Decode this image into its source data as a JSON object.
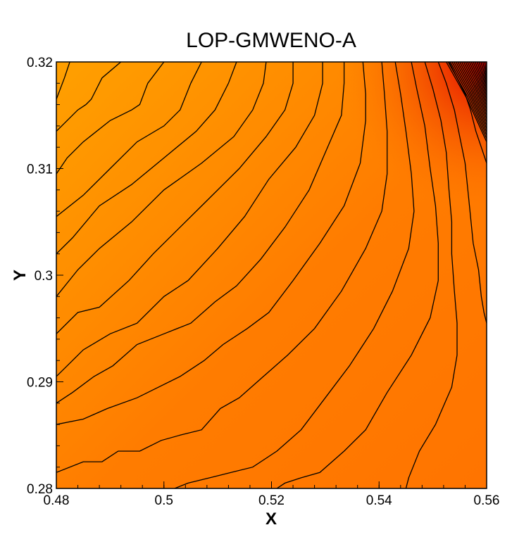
{
  "chart_data": {
    "type": "contour",
    "title": "LOP-GMWENO-A",
    "xlabel": "X",
    "ylabel": "Y",
    "xlim": [
      0.48,
      0.56
    ],
    "ylim": [
      0.28,
      0.32
    ],
    "x_ticks": [
      "0.48",
      "0.5",
      "0.52",
      "0.54",
      "0.56"
    ],
    "y_ticks": [
      "0.28",
      "0.29",
      "0.3",
      "0.31",
      "0.32"
    ],
    "x_tick_values": [
      0.48,
      0.5,
      0.52,
      0.54,
      0.56
    ],
    "y_tick_values": [
      0.28,
      0.29,
      0.3,
      0.31,
      0.32
    ],
    "colormap": [
      "#ffa000",
      "#ff7c00",
      "#ff7400",
      "#e00000"
    ],
    "grid": false,
    "legend": "none",
    "contours": [
      [
        [
          0.4825,
          0.32
        ],
        [
          0.4815,
          0.3185
        ],
        [
          0.48,
          0.3165
        ]
      ],
      [
        [
          0.492,
          0.32
        ],
        [
          0.4885,
          0.3185
        ],
        [
          0.4865,
          0.3165
        ],
        [
          0.4855,
          0.316
        ],
        [
          0.484,
          0.3155
        ],
        [
          0.482,
          0.3145
        ],
        [
          0.48,
          0.3135
        ]
      ],
      [
        [
          0.5,
          0.32
        ],
        [
          0.497,
          0.318
        ],
        [
          0.4955,
          0.316
        ],
        [
          0.494,
          0.3155
        ],
        [
          0.49,
          0.3145
        ],
        [
          0.485,
          0.3125
        ],
        [
          0.482,
          0.311
        ],
        [
          0.48,
          0.3095
        ]
      ],
      [
        [
          0.507,
          0.32
        ],
        [
          0.505,
          0.318
        ],
        [
          0.503,
          0.3155
        ],
        [
          0.5,
          0.314
        ],
        [
          0.495,
          0.3125
        ],
        [
          0.49,
          0.31
        ],
        [
          0.485,
          0.3075
        ],
        [
          0.48,
          0.3055
        ]
      ],
      [
        [
          0.5135,
          0.32
        ],
        [
          0.512,
          0.318
        ],
        [
          0.5095,
          0.3155
        ],
        [
          0.506,
          0.3135
        ],
        [
          0.5,
          0.311
        ],
        [
          0.494,
          0.3085
        ],
        [
          0.488,
          0.3065
        ],
        [
          0.483,
          0.3035
        ],
        [
          0.48,
          0.302
        ]
      ],
      [
        [
          0.519,
          0.32
        ],
        [
          0.5185,
          0.318
        ],
        [
          0.5165,
          0.3155
        ],
        [
          0.513,
          0.313
        ],
        [
          0.507,
          0.3105
        ],
        [
          0.5,
          0.308
        ],
        [
          0.494,
          0.305
        ],
        [
          0.488,
          0.3025
        ],
        [
          0.484,
          0.3005
        ],
        [
          0.48,
          0.298
        ]
      ],
      [
        [
          0.524,
          0.32
        ],
        [
          0.524,
          0.318
        ],
        [
          0.5225,
          0.3155
        ],
        [
          0.519,
          0.313
        ],
        [
          0.514,
          0.31
        ],
        [
          0.508,
          0.307
        ],
        [
          0.503,
          0.3045
        ],
        [
          0.498,
          0.302
        ],
        [
          0.4935,
          0.2995
        ],
        [
          0.488,
          0.297
        ],
        [
          0.484,
          0.2965
        ],
        [
          0.48,
          0.2945
        ]
      ],
      [
        [
          0.5295,
          0.32
        ],
        [
          0.5295,
          0.318
        ],
        [
          0.528,
          0.315
        ],
        [
          0.5245,
          0.312
        ],
        [
          0.5195,
          0.309
        ],
        [
          0.515,
          0.3055
        ],
        [
          0.51,
          0.3025
        ],
        [
          0.5045,
          0.2995
        ],
        [
          0.5,
          0.298
        ],
        [
          0.495,
          0.2955
        ],
        [
          0.49,
          0.2945
        ],
        [
          0.485,
          0.293
        ],
        [
          0.482,
          0.2915
        ],
        [
          0.48,
          0.2905
        ]
      ],
      [
        [
          0.5335,
          0.32
        ],
        [
          0.5335,
          0.318
        ],
        [
          0.533,
          0.315
        ],
        [
          0.53,
          0.3115
        ],
        [
          0.527,
          0.308
        ],
        [
          0.5225,
          0.3045
        ],
        [
          0.518,
          0.3015
        ],
        [
          0.5135,
          0.299
        ],
        [
          0.5095,
          0.2975
        ],
        [
          0.505,
          0.2955
        ],
        [
          0.5,
          0.2945
        ],
        [
          0.495,
          0.2935
        ],
        [
          0.4905,
          0.2915
        ],
        [
          0.487,
          0.2905
        ],
        [
          0.483,
          0.289
        ],
        [
          0.48,
          0.288
        ]
      ],
      [
        [
          0.537,
          0.32
        ],
        [
          0.5375,
          0.317
        ],
        [
          0.5375,
          0.3145
        ],
        [
          0.5365,
          0.3105
        ],
        [
          0.5335,
          0.3065
        ],
        [
          0.529,
          0.303
        ],
        [
          0.524,
          0.2995
        ],
        [
          0.5195,
          0.2965
        ],
        [
          0.5155,
          0.295
        ],
        [
          0.511,
          0.2935
        ],
        [
          0.5075,
          0.292
        ],
        [
          0.503,
          0.2905
        ],
        [
          0.499,
          0.2895
        ],
        [
          0.495,
          0.2885
        ],
        [
          0.4895,
          0.2875
        ],
        [
          0.485,
          0.2865
        ],
        [
          0.48,
          0.286
        ]
      ],
      [
        [
          0.5405,
          0.32
        ],
        [
          0.541,
          0.317
        ],
        [
          0.5415,
          0.3135
        ],
        [
          0.5415,
          0.3095
        ],
        [
          0.5405,
          0.306
        ],
        [
          0.5375,
          0.3025
        ],
        [
          0.533,
          0.2985
        ],
        [
          0.528,
          0.295
        ],
        [
          0.523,
          0.2925
        ],
        [
          0.5185,
          0.2905
        ],
        [
          0.514,
          0.2885
        ],
        [
          0.5105,
          0.2875
        ],
        [
          0.507,
          0.2855
        ],
        [
          0.503,
          0.285
        ],
        [
          0.4995,
          0.2845
        ],
        [
          0.4955,
          0.2835
        ],
        [
          0.4915,
          0.2835
        ],
        [
          0.4885,
          0.2825
        ],
        [
          0.485,
          0.2825
        ],
        [
          0.48,
          0.2815
        ]
      ],
      [
        [
          0.543,
          0.32
        ],
        [
          0.544,
          0.317
        ],
        [
          0.545,
          0.3135
        ],
        [
          0.546,
          0.3095
        ],
        [
          0.5465,
          0.306
        ],
        [
          0.5455,
          0.3025
        ],
        [
          0.5425,
          0.2985
        ],
        [
          0.539,
          0.295
        ],
        [
          0.5345,
          0.2915
        ],
        [
          0.53,
          0.2885
        ],
        [
          0.5255,
          0.2855
        ],
        [
          0.521,
          0.2835
        ],
        [
          0.5165,
          0.282
        ],
        [
          0.5125,
          0.2815
        ],
        [
          0.5085,
          0.281
        ],
        [
          0.5045,
          0.2805
        ],
        [
          0.502,
          0.28
        ]
      ],
      [
        [
          0.546,
          0.32
        ],
        [
          0.547,
          0.3175
        ],
        [
          0.5485,
          0.314
        ],
        [
          0.5495,
          0.31
        ],
        [
          0.5505,
          0.3065
        ],
        [
          0.551,
          0.303
        ],
        [
          0.551,
          0.2995
        ],
        [
          0.5495,
          0.296
        ],
        [
          0.546,
          0.2925
        ],
        [
          0.5415,
          0.289
        ],
        [
          0.5375,
          0.2855
        ],
        [
          0.5335,
          0.2835
        ],
        [
          0.529,
          0.2815
        ],
        [
          0.5255,
          0.281
        ],
        [
          0.5225,
          0.2805
        ],
        [
          0.521,
          0.28
        ]
      ],
      [
        [
          0.5485,
          0.32
        ],
        [
          0.55,
          0.3175
        ],
        [
          0.5515,
          0.3145
        ],
        [
          0.5525,
          0.3115
        ],
        [
          0.553,
          0.308
        ],
        [
          0.5535,
          0.305
        ],
        [
          0.5535,
          0.302
        ],
        [
          0.554,
          0.2985
        ],
        [
          0.5545,
          0.2955
        ],
        [
          0.5545,
          0.2925
        ],
        [
          0.5535,
          0.2895
        ],
        [
          0.5505,
          0.286
        ],
        [
          0.5475,
          0.2835
        ],
        [
          0.5455,
          0.281
        ],
        [
          0.545,
          0.28
        ]
      ],
      [
        [
          0.551,
          0.32
        ],
        [
          0.5525,
          0.318
        ],
        [
          0.554,
          0.3155
        ],
        [
          0.555,
          0.313
        ],
        [
          0.556,
          0.3105
        ],
        [
          0.5565,
          0.308
        ],
        [
          0.557,
          0.3055
        ],
        [
          0.5575,
          0.303
        ],
        [
          0.5585,
          0.3005
        ],
        [
          0.559,
          0.298
        ],
        [
          0.5595,
          0.2965
        ],
        [
          0.56,
          0.2955
        ]
      ],
      [
        [
          0.553,
          0.32
        ],
        [
          0.5545,
          0.3185
        ],
        [
          0.556,
          0.317
        ],
        [
          0.557,
          0.3155
        ],
        [
          0.558,
          0.3135
        ],
        [
          0.559,
          0.312
        ],
        [
          0.56,
          0.3105
        ]
      ]
    ]
  }
}
